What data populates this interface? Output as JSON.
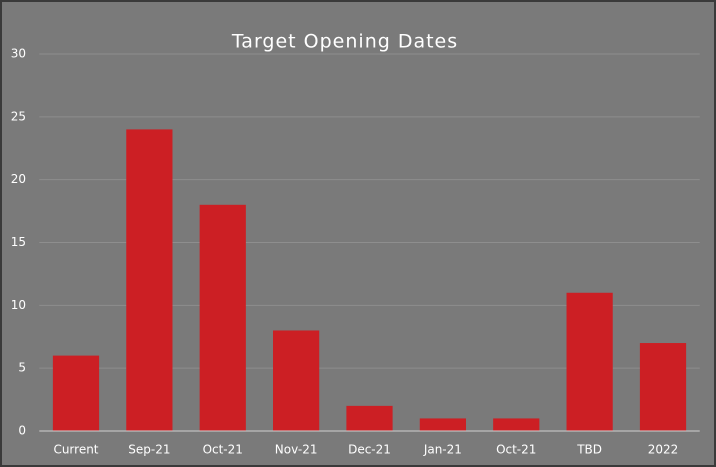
{
  "chart_data": {
    "type": "bar",
    "title": "Target Opening Dates",
    "categories": [
      "Current",
      "Sep-21",
      "Oct-21",
      "Nov-21",
      "Dec-21",
      "Jan-21",
      "Oct-21",
      "TBD",
      "2022"
    ],
    "values": [
      6,
      24,
      18,
      8,
      2,
      1,
      1,
      11,
      7
    ],
    "color": "#cc1f24",
    "ylim": [
      0,
      30
    ],
    "yticks": [
      0,
      5,
      10,
      15,
      20,
      25,
      30
    ],
    "grid": true
  }
}
